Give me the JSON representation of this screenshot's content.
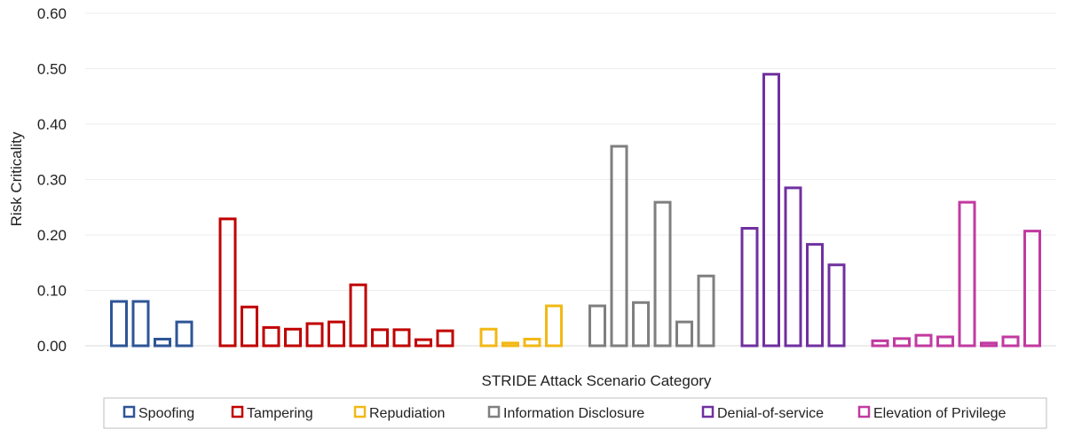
{
  "chart_data": {
    "type": "bar",
    "title": "",
    "xlabel": "STRIDE Attack Scenario Category",
    "ylabel": "Risk Criticality",
    "ylim": [
      0,
      0.6
    ],
    "yticks": [
      "0.00",
      "0.10",
      "0.20",
      "0.30",
      "0.40",
      "0.50",
      "0.60"
    ],
    "grid": true,
    "legend_position": "bottom",
    "series": [
      {
        "name": "Spoofing",
        "color": "#2E5597",
        "values": [
          0.08,
          0.08,
          0.012,
          0.043
        ]
      },
      {
        "name": "Tampering",
        "color": "#C00000",
        "values": [
          0.229,
          0.07,
          0.033,
          0.03,
          0.04,
          0.043,
          0.11,
          0.029,
          0.029,
          0.011,
          0.027
        ]
      },
      {
        "name": "Repudiation",
        "color": "#F2B815",
        "values": [
          0.03,
          0.005,
          0.012,
          0.072
        ]
      },
      {
        "name": "Information Disclosure",
        "color": "#7F7F7F",
        "values": [
          0.072,
          0.36,
          0.078,
          0.259,
          0.043,
          0.126
        ]
      },
      {
        "name": "Denial-of-service",
        "color": "#7030A0",
        "values": [
          0.212,
          0.49,
          0.285,
          0.183,
          0.146
        ]
      },
      {
        "name": "Elevation of Privilege",
        "color": "#C23AA0",
        "values": [
          0.009,
          0.013,
          0.019,
          0.016,
          0.259,
          0.005,
          0.016,
          0.207
        ]
      }
    ]
  }
}
